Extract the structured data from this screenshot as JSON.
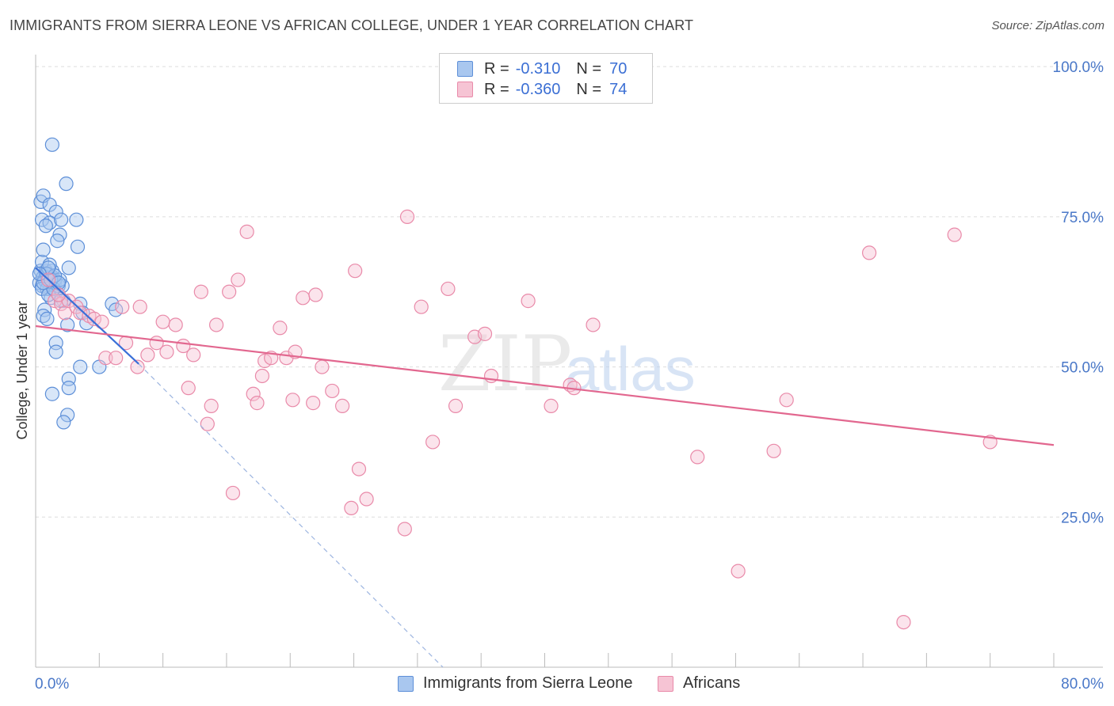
{
  "title": "IMMIGRANTS FROM SIERRA LEONE VS AFRICAN COLLEGE, UNDER 1 YEAR CORRELATION CHART",
  "source": "Source: ZipAtlas.com",
  "legend": {
    "rows": [
      {
        "label": "R =",
        "r_value": "-0.310",
        "n_label": "N =",
        "n_value": "70"
      },
      {
        "label": "R =",
        "r_value": "-0.360",
        "n_label": "N =",
        "n_value": "74"
      }
    ]
  },
  "bottom_legend": [
    "Immigrants from Sierra Leone",
    "Africans"
  ],
  "colors": {
    "blue_fill": "#a9c7ef",
    "blue_stroke": "#5d8fd8",
    "blue_line": "#3a6fd8",
    "pink_fill": "#f6c4d4",
    "pink_stroke": "#e98aa9",
    "pink_line": "#e2678f",
    "tick_text": "#4a78c8",
    "grid": "#dddddd"
  },
  "chart_data": {
    "type": "scatter",
    "title": "IMMIGRANTS FROM SIERRA LEONE VS AFRICAN COLLEGE, UNDER 1 YEAR CORRELATION CHART",
    "xlabel": "",
    "ylabel": "College, Under 1 year",
    "x_tick_labels": [
      "0.0%",
      "80.0%"
    ],
    "y_tick_labels": [
      "25.0%",
      "50.0%",
      "75.0%",
      "100.0%"
    ],
    "xlim": [
      0,
      80
    ],
    "ylim": [
      0,
      102
    ],
    "y_ticks": [
      25,
      50,
      75,
      100
    ],
    "watermark": {
      "zip": "ZIP",
      "atlas": "atlas"
    },
    "series": [
      {
        "name": "Immigrants from Sierra Leone",
        "color": "blue",
        "R": -0.31,
        "N": 70,
        "trend": {
          "x": [
            0.0,
            8.1
          ],
          "y": [
            66.5,
            50.5
          ]
        },
        "trend_extension": {
          "x": [
            8.1,
            32.0
          ],
          "y": [
            50.5,
            0.0
          ]
        },
        "points": [
          [
            0.3,
            64.0
          ],
          [
            0.4,
            66.0
          ],
          [
            0.5,
            63.5
          ],
          [
            0.6,
            65.0
          ],
          [
            0.7,
            64.5
          ],
          [
            0.8,
            66.0
          ],
          [
            0.9,
            65.0
          ],
          [
            1.0,
            64.0
          ],
          [
            1.1,
            63.0
          ],
          [
            1.2,
            64.0
          ],
          [
            1.3,
            65.0
          ],
          [
            1.5,
            64.0
          ],
          [
            0.5,
            67.5
          ],
          [
            0.7,
            64.5
          ],
          [
            0.9,
            63.0
          ],
          [
            1.3,
            66.0
          ],
          [
            1.6,
            62.5
          ],
          [
            1.8,
            63.5
          ],
          [
            0.4,
            77.5
          ],
          [
            0.6,
            78.5
          ],
          [
            1.1,
            77.0
          ],
          [
            1.6,
            75.8
          ],
          [
            0.5,
            74.5
          ],
          [
            1.1,
            74.0
          ],
          [
            2.0,
            74.5
          ],
          [
            3.2,
            74.5
          ],
          [
            0.8,
            73.5
          ],
          [
            1.9,
            72.0
          ],
          [
            1.7,
            71.0
          ],
          [
            3.3,
            70.0
          ],
          [
            0.6,
            69.5
          ],
          [
            1.1,
            67.0
          ],
          [
            2.6,
            66.5
          ],
          [
            0.8,
            65.5
          ],
          [
            1.5,
            64.5
          ],
          [
            2.1,
            63.5
          ],
          [
            1.2,
            61.5
          ],
          [
            2.2,
            61.0
          ],
          [
            3.5,
            60.5
          ],
          [
            6.0,
            60.5
          ],
          [
            0.7,
            59.5
          ],
          [
            3.7,
            59.0
          ],
          [
            6.3,
            59.5
          ],
          [
            0.6,
            58.5
          ],
          [
            0.9,
            58.0
          ],
          [
            2.5,
            57.0
          ],
          [
            4.0,
            57.3
          ],
          [
            1.6,
            54.0
          ],
          [
            1.6,
            52.5
          ],
          [
            3.5,
            50.0
          ],
          [
            5.0,
            50.0
          ],
          [
            2.6,
            48.0
          ],
          [
            2.6,
            46.5
          ],
          [
            1.3,
            45.5
          ],
          [
            2.5,
            42.0
          ],
          [
            2.2,
            40.8
          ],
          [
            1.3,
            87.0
          ],
          [
            2.4,
            80.5
          ],
          [
            0.5,
            63.0
          ],
          [
            1.0,
            62.0
          ],
          [
            1.4,
            63.0
          ],
          [
            2.0,
            61.0
          ],
          [
            0.9,
            65.5
          ],
          [
            1.9,
            64.5
          ],
          [
            0.6,
            64.0
          ],
          [
            1.2,
            64.5
          ],
          [
            1.5,
            65.2
          ],
          [
            1.0,
            66.5
          ],
          [
            0.3,
            65.5
          ],
          [
            1.8,
            64.0
          ]
        ]
      },
      {
        "name": "Africans",
        "color": "pink",
        "R": -0.36,
        "N": 74,
        "trend": {
          "x": [
            0.0,
            80.0
          ],
          "y": [
            56.8,
            37.0
          ]
        },
        "points": [
          [
            1.0,
            64.5
          ],
          [
            1.5,
            61.0
          ],
          [
            2.0,
            60.5
          ],
          [
            2.3,
            59.0
          ],
          [
            2.6,
            61.0
          ],
          [
            3.2,
            60.0
          ],
          [
            3.5,
            59.0
          ],
          [
            4.2,
            58.5
          ],
          [
            4.6,
            58.0
          ],
          [
            5.2,
            57.5
          ],
          [
            5.5,
            51.5
          ],
          [
            6.3,
            51.5
          ],
          [
            6.8,
            60.0
          ],
          [
            7.1,
            54.0
          ],
          [
            8.2,
            60.0
          ],
          [
            8.0,
            50.0
          ],
          [
            8.8,
            52.0
          ],
          [
            9.5,
            54.0
          ],
          [
            10.0,
            57.5
          ],
          [
            10.3,
            52.5
          ],
          [
            11.0,
            57.0
          ],
          [
            11.6,
            53.5
          ],
          [
            12.0,
            46.5
          ],
          [
            12.4,
            52.0
          ],
          [
            13.0,
            62.5
          ],
          [
            13.5,
            40.5
          ],
          [
            13.8,
            43.5
          ],
          [
            14.2,
            57.0
          ],
          [
            15.2,
            62.5
          ],
          [
            15.5,
            29.0
          ],
          [
            15.9,
            64.5
          ],
          [
            16.6,
            72.5
          ],
          [
            17.1,
            45.5
          ],
          [
            17.4,
            44.0
          ],
          [
            17.8,
            48.5
          ],
          [
            18.0,
            51.0
          ],
          [
            18.5,
            51.5
          ],
          [
            19.2,
            56.5
          ],
          [
            19.7,
            51.5
          ],
          [
            20.2,
            44.5
          ],
          [
            20.4,
            52.5
          ],
          [
            21.0,
            61.5
          ],
          [
            21.8,
            44.0
          ],
          [
            22.0,
            62.0
          ],
          [
            22.5,
            50.0
          ],
          [
            23.3,
            46.0
          ],
          [
            24.1,
            43.5
          ],
          [
            24.8,
            26.5
          ],
          [
            25.1,
            66.0
          ],
          [
            25.4,
            33.0
          ],
          [
            26.0,
            28.0
          ],
          [
            29.0,
            23.0
          ],
          [
            29.2,
            75.0
          ],
          [
            30.3,
            60.0
          ],
          [
            31.2,
            37.5
          ],
          [
            32.4,
            63.0
          ],
          [
            33.0,
            43.5
          ],
          [
            34.5,
            55.0
          ],
          [
            35.3,
            55.5
          ],
          [
            35.8,
            48.5
          ],
          [
            38.7,
            61.0
          ],
          [
            40.5,
            43.5
          ],
          [
            42.0,
            47.0
          ],
          [
            42.3,
            46.5
          ],
          [
            43.8,
            57.0
          ],
          [
            52.0,
            35.0
          ],
          [
            55.2,
            16.0
          ],
          [
            58.0,
            36.0
          ],
          [
            59.0,
            44.5
          ],
          [
            65.5,
            69.0
          ],
          [
            68.2,
            7.5
          ],
          [
            72.2,
            72.0
          ],
          [
            75.0,
            37.5
          ],
          [
            1.8,
            62.0
          ]
        ]
      }
    ]
  }
}
